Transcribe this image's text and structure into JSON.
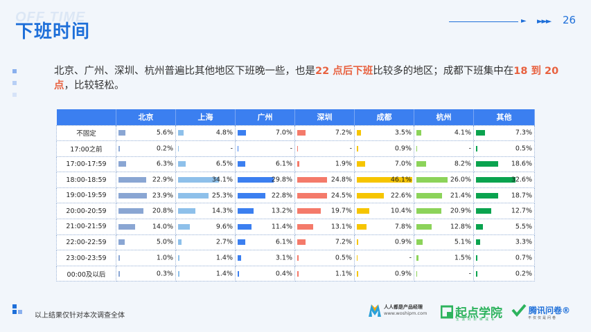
{
  "header": {
    "watermark": "OFF TIME",
    "title": "下班时间",
    "page_number": "26"
  },
  "intro": {
    "part1": "北京、广州、深圳、杭州普遍比其他地区下班晚一些，也是",
    "hl1": "22 点后下班",
    "part2": "比较多的地区；成都下班集中在",
    "hl2": "18 到 20 点",
    "part3": "，比较轻松。"
  },
  "colors": {
    "accent": "#1e6fd9",
    "header_bg": "#3b7ff0",
    "highlight": "#e8613f",
    "bars": [
      "#8aa6d3",
      "#8ec0ea",
      "#3b7ff0",
      "#f47a6a",
      "#f6c500",
      "#8cd35a",
      "#0aa34f"
    ]
  },
  "chart_data": {
    "type": "table",
    "columns": [
      "北京",
      "上海",
      "广州",
      "深圳",
      "成都",
      "杭州",
      "其他"
    ],
    "rows": [
      {
        "label": "不固定",
        "values": [
          5.6,
          4.8,
          7.0,
          7.2,
          3.5,
          4.1,
          7.3
        ],
        "display": [
          "5.6%",
          "4.8%",
          "7.0%",
          "7.2%",
          "3.5%",
          "4.1%",
          "7.3%"
        ]
      },
      {
        "label": "17:00之前",
        "values": [
          0.2,
          0,
          0,
          0,
          0.9,
          0,
          0.5
        ],
        "display": [
          "0.2%",
          "-",
          "-",
          "-",
          "0.9%",
          "-",
          "0.5%"
        ]
      },
      {
        "label": "17:00-17:59",
        "values": [
          6.3,
          6.5,
          6.1,
          1.9,
          7.0,
          8.2,
          18.6
        ],
        "display": [
          "6.3%",
          "6.5%",
          "6.1%",
          "1.9%",
          "7.0%",
          "8.2%",
          "18.6%"
        ]
      },
      {
        "label": "18:00-18:59",
        "values": [
          22.9,
          34.1,
          29.8,
          24.8,
          46.1,
          26.0,
          32.6
        ],
        "display": [
          "22.9%",
          "34.1%",
          "29.8%",
          "24.8%",
          "46.1%",
          "26.0%",
          "32.6%"
        ]
      },
      {
        "label": "19:00-19:59",
        "values": [
          23.9,
          25.3,
          22.8,
          24.5,
          22.6,
          21.4,
          18.7
        ],
        "display": [
          "23.9%",
          "25.3%",
          "22.8%",
          "24.5%",
          "22.6%",
          "21.4%",
          "18.7%"
        ]
      },
      {
        "label": "20:00-20:59",
        "values": [
          20.8,
          14.3,
          13.2,
          19.7,
          10.4,
          20.9,
          12.7
        ],
        "display": [
          "20.8%",
          "14.3%",
          "13.2%",
          "19.7%",
          "10.4%",
          "20.9%",
          "12.7%"
        ]
      },
      {
        "label": "21:00-21:59",
        "values": [
          14.0,
          9.6,
          11.4,
          13.1,
          7.8,
          12.8,
          5.5
        ],
        "display": [
          "14.0%",
          "9.6%",
          "11.4%",
          "13.1%",
          "7.8%",
          "12.8%",
          "5.5%"
        ]
      },
      {
        "label": "22:00-22:59",
        "values": [
          5.0,
          2.7,
          6.1,
          7.2,
          0.9,
          5.1,
          3.3
        ],
        "display": [
          "5.0%",
          "2.7%",
          "6.1%",
          "7.2%",
          "0.9%",
          "5.1%",
          "3.3%"
        ]
      },
      {
        "label": "23:00-23:59",
        "values": [
          1.0,
          1.4,
          3.1,
          0.5,
          0,
          1.5,
          0.7
        ],
        "display": [
          "1.0%",
          "1.4%",
          "3.1%",
          "0.5%",
          "-",
          "1.5%",
          "0.7%"
        ]
      },
      {
        "label": "00:00及以后",
        "values": [
          0.3,
          1.4,
          0.4,
          1.1,
          0.9,
          0,
          0.2
        ],
        "display": [
          "0.3%",
          "1.4%",
          "0.4%",
          "1.1%",
          "0.9%",
          "-",
          "0.2%"
        ]
      }
    ]
  },
  "footer": {
    "note": "以上结果仅针对本次调查全体",
    "logo1_line1": "人人都是产品经理",
    "logo1_line2": "www.woshipm.com",
    "logo2": "起点学院",
    "logo2_sub": "生涯的阶梯成长",
    "logo3": "腾讯问卷®",
    "logo3_sub": "不仅仅是问卷"
  }
}
